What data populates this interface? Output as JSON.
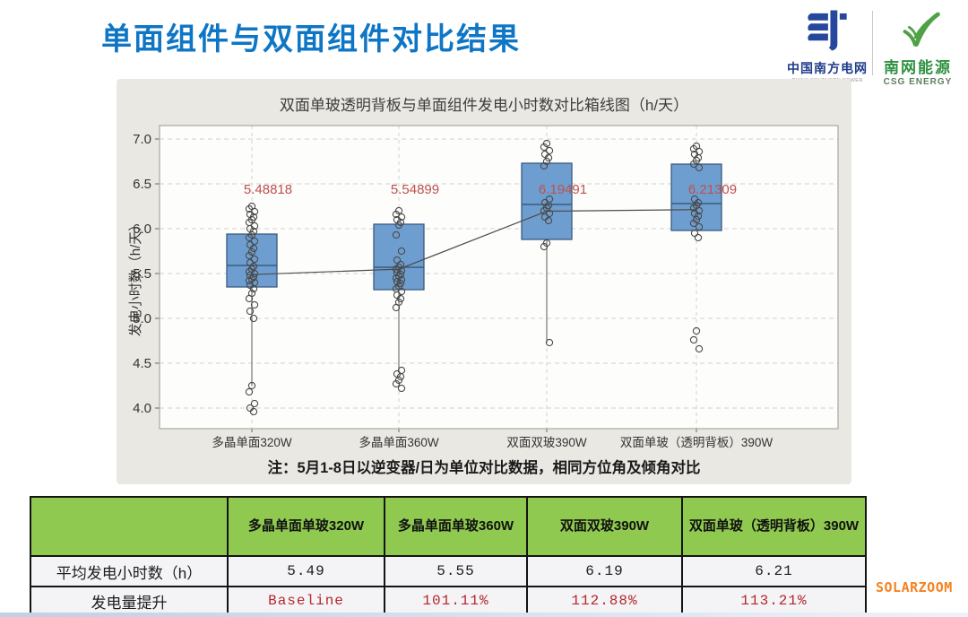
{
  "slide": {
    "title": "单面组件与双面组件对比结果",
    "watermark": "SOLARZOOM"
  },
  "logos": {
    "csg": {
      "name": "中国南方电网",
      "caption": "CHINA SOUTHERN POWER GRID"
    },
    "energy": {
      "name": "南网能源",
      "caption": "CSG ENERGY"
    }
  },
  "chart_data": {
    "type": "box",
    "title": "双面单玻透明背板与单面组件发电小时数对比箱线图（h/天）",
    "ylabel": "发电小时数（h/天）",
    "note": "注：5月1-8日以逆变器/日为单位对比数据，相同方位角及倾角对比",
    "yticks": [
      7.0,
      6.5,
      6.0,
      5.5,
      5.0,
      4.5,
      4.0
    ],
    "ylim": [
      3.77,
      7.15
    ],
    "grid": "dashed",
    "categories": [
      "多晶单面320W",
      "多晶单面360W",
      "双面双玻390W",
      "双面单玻（透明背板）390W"
    ],
    "series": [
      {
        "category": "多晶单面320W",
        "mean": 5.48818,
        "mean_label": "5.48818",
        "median": 5.59,
        "q1": 5.35,
        "q3": 5.94,
        "whisker_low": 4.25,
        "points": [
          6.25,
          6.22,
          6.19,
          6.16,
          6.13,
          6.1,
          6.07,
          6.03,
          6.0,
          5.97,
          5.93,
          5.9,
          5.86,
          5.82,
          5.78,
          5.74,
          5.7,
          5.66,
          5.62,
          5.58,
          5.55,
          5.52,
          5.5,
          5.48,
          5.46,
          5.44,
          5.42,
          5.4,
          5.37,
          5.33,
          5.28,
          5.22,
          5.15,
          5.08,
          5.0,
          4.25,
          4.18,
          4.05,
          4.0,
          3.96
        ]
      },
      {
        "category": "多晶单面360W",
        "mean": 5.54899,
        "mean_label": "5.54899",
        "median": 5.57,
        "q1": 5.32,
        "q3": 6.05,
        "whisker_low": 4.4,
        "points": [
          6.2,
          6.16,
          6.13,
          6.1,
          6.07,
          6.04,
          5.93,
          5.75,
          5.65,
          5.6,
          5.57,
          5.55,
          5.53,
          5.51,
          5.49,
          5.47,
          5.45,
          5.43,
          5.41,
          5.39,
          5.36,
          5.33,
          5.3,
          5.26,
          5.22,
          5.18,
          5.12,
          4.42,
          4.38,
          4.35,
          4.31,
          4.27,
          4.22
        ]
      },
      {
        "category": "双面双玻390W",
        "mean": 6.19491,
        "mean_label": "6.19491",
        "median": 6.27,
        "q1": 5.88,
        "q3": 6.73,
        "whisker_low": 4.73,
        "points": [
          6.95,
          6.91,
          6.87,
          6.83,
          6.79,
          6.75,
          6.7,
          6.33,
          6.29,
          6.26,
          6.23,
          6.2,
          6.17,
          6.13,
          6.09,
          5.84,
          5.8,
          4.73
        ]
      },
      {
        "category": "双面单玻（透明背板）390W",
        "mean": 6.21309,
        "mean_label": "6.21309",
        "median": 6.28,
        "q1": 5.98,
        "q3": 6.72,
        "whisker_low": null,
        "points": [
          6.92,
          6.89,
          6.86,
          6.83,
          6.79,
          6.76,
          6.72,
          6.68,
          6.33,
          6.29,
          6.26,
          6.23,
          6.2,
          6.17,
          6.14,
          6.1,
          6.06,
          6.02,
          5.95,
          5.9,
          4.86,
          4.76,
          4.66
        ]
      }
    ],
    "colors": {
      "box_fill": "#6E9ECF",
      "box_border": "#3A5B80",
      "mean_line": "#4d4d4d",
      "mean_label": "#C0504D",
      "grid": "#D2D1CB",
      "point": "#4a4a4a"
    }
  },
  "table": {
    "col_headers": [
      "",
      "多晶单面单玻320W",
      "多晶单面单玻360W",
      "双面双玻390W",
      "双面单玻（透明背板）390W"
    ],
    "rows": [
      {
        "label": "平均发电小时数（h）",
        "values": [
          "5.49",
          "5.55",
          "6.19",
          "6.21"
        ]
      },
      {
        "label": "发电量提升",
        "values": [
          "Baseline",
          "101.11%",
          "112.88%",
          "113.21%"
        ]
      }
    ],
    "header_bg": "#8FC94F",
    "highlight_color": "#B3282D"
  }
}
